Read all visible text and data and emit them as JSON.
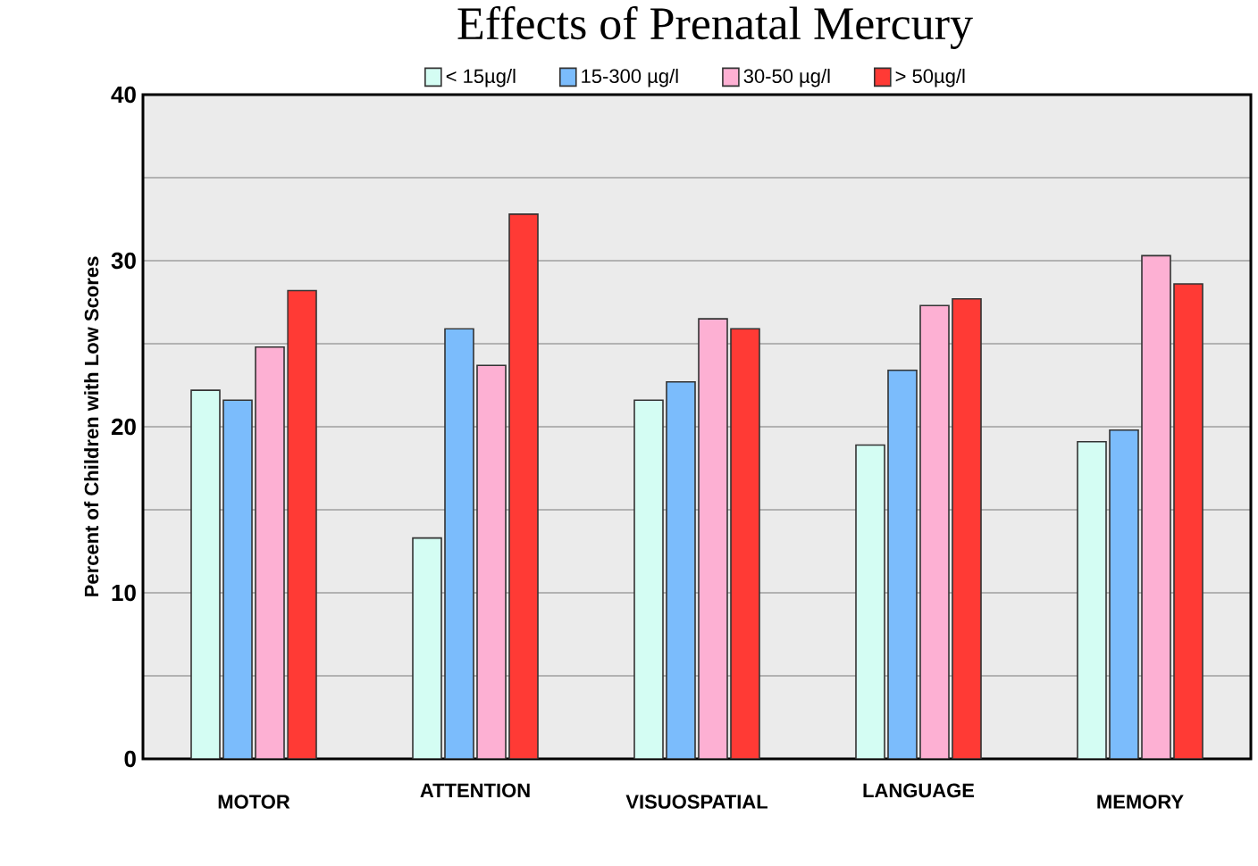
{
  "chart_data": {
    "type": "bar",
    "title": "Effects of Prenatal Mercury",
    "ylabel": "Percent of Children with Low Scores",
    "categories": [
      "MOTOR",
      "ATTENTION",
      "VISUOSPATIAL",
      "LANGUAGE",
      "MEMORY"
    ],
    "series": [
      {
        "name": "< 15µg/l",
        "color": "#d4fdf3",
        "values": [
          22.2,
          13.3,
          21.6,
          18.9,
          19.1
        ]
      },
      {
        "name": "15-300 µg/l",
        "color": "#7bbcfc",
        "values": [
          21.6,
          25.9,
          22.7,
          23.4,
          19.8
        ]
      },
      {
        "name": "30-50 µg/l",
        "color": "#fdb0d3",
        "values": [
          24.8,
          23.7,
          26.5,
          27.3,
          30.3
        ]
      },
      {
        "name": "> 50µg/l",
        "color": "#ff3a35",
        "values": [
          28.2,
          32.8,
          25.9,
          27.7,
          28.6
        ]
      }
    ],
    "ylim": [
      0,
      40
    ],
    "yticks": [
      0,
      {
        "value": 5,
        "label": null
      },
      10,
      {
        "value": 15,
        "label": null
      },
      20,
      {
        "value": 25,
        "label": null
      },
      30,
      {
        "value": 35,
        "label": null
      },
      40
    ],
    "grid": "y",
    "legend": "top"
  }
}
